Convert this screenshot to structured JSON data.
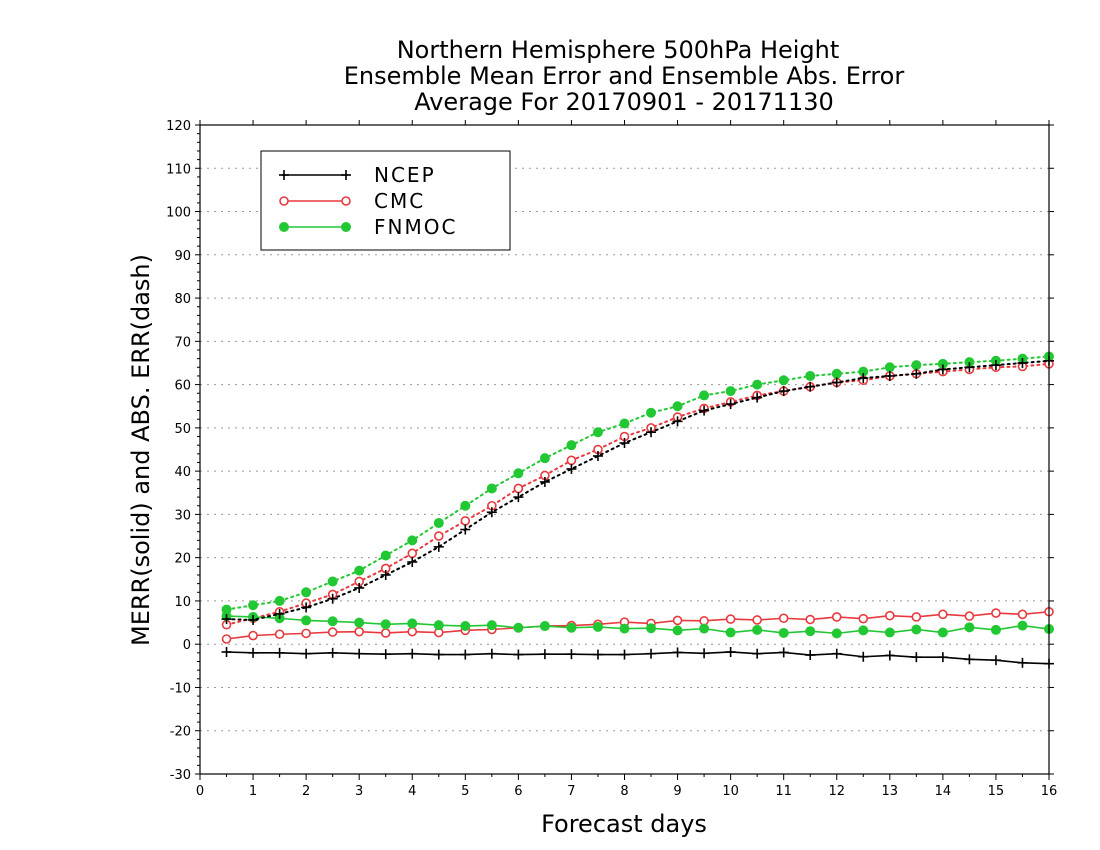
{
  "chart_data": {
    "type": "line",
    "title_lines": [
      "Northern Hemisphere 500hPa Height",
      "Ensemble Mean Error and Ensemble Abs. Error",
      "Average For 20170901 - 20171130"
    ],
    "xlabel": "Forecast days",
    "ylabel": "MERR(solid) and ABS. ERR(dash)",
    "xlim": [
      0,
      16
    ],
    "ylim": [
      -30,
      120
    ],
    "x_ticks": [
      "0",
      "1",
      "2",
      "3",
      "4",
      "5",
      "6",
      "7",
      "8",
      "9",
      "10",
      "11",
      "12",
      "13",
      "14",
      "15",
      "16"
    ],
    "y_ticks": [
      "-30",
      "-20",
      "-10",
      "0",
      "10",
      "20",
      "30",
      "40",
      "50",
      "60",
      "70",
      "80",
      "90",
      "100",
      "110",
      "120"
    ],
    "grid": true,
    "legend_position": "top-left",
    "x": [
      0.5,
      1,
      1.5,
      2,
      2.5,
      3,
      3.5,
      4,
      4.5,
      5,
      5.5,
      6,
      6.5,
      7,
      7.5,
      8,
      8.5,
      9,
      9.5,
      10,
      10.5,
      11,
      11.5,
      12,
      12.5,
      13,
      13.5,
      14,
      14.5,
      15,
      15.5,
      16
    ],
    "series": [
      {
        "name": "NCEP",
        "color": "#000000",
        "marker": "plus",
        "merr": [
          -1.8,
          -2,
          -2,
          -2.2,
          -2,
          -2.2,
          -2.3,
          -2.2,
          -2.4,
          -2.4,
          -2.2,
          -2.4,
          -2.3,
          -2.3,
          -2.4,
          -2.4,
          -2.2,
          -1.9,
          -2.1,
          -1.8,
          -2.2,
          -1.9,
          -2.5,
          -2.2,
          -2.9,
          -2.6,
          -3,
          -3,
          -3.5,
          -3.7,
          -4.3,
          -4.5
        ],
        "abs_err": [
          5.8,
          5.6,
          7,
          8.5,
          10.5,
          13,
          16,
          19,
          22.5,
          26.5,
          30.5,
          34,
          37.5,
          40.5,
          43.5,
          46.5,
          49,
          51.5,
          54,
          55.5,
          57,
          58.5,
          59.5,
          60.5,
          61.5,
          62,
          62.5,
          63.5,
          64,
          64.5,
          65,
          65.5
        ]
      },
      {
        "name": "CMC",
        "color": "#e8393f",
        "marker": "open-circle",
        "merr": [
          1.2,
          2,
          2.3,
          2.5,
          2.8,
          2.9,
          2.6,
          2.9,
          2.7,
          3.2,
          3.4,
          3.8,
          4.2,
          4.3,
          4.6,
          5.1,
          4.8,
          5.5,
          5.4,
          5.8,
          5.6,
          6,
          5.7,
          6.3,
          5.9,
          6.6,
          6.3,
          6.9,
          6.5,
          7.2,
          6.9,
          7.5
        ],
        "abs_err": [
          4.5,
          6,
          7.5,
          9.5,
          11.5,
          14.5,
          17.5,
          21,
          25,
          28.5,
          32,
          36,
          39,
          42.5,
          45,
          48,
          50,
          52.5,
          54.5,
          56,
          57.5,
          58.5,
          59.5,
          60.5,
          61,
          62,
          62.5,
          63,
          63.5,
          64,
          64.2,
          64.8
        ]
      },
      {
        "name": "FNMOC",
        "color": "#22c833",
        "marker": "filled-circle",
        "merr": [
          6.5,
          6.3,
          6,
          5.5,
          5.3,
          5,
          4.6,
          4.8,
          4.4,
          4.2,
          4.4,
          3.8,
          4.2,
          3.8,
          4,
          3.6,
          3.7,
          3.2,
          3.6,
          2.7,
          3.3,
          2.6,
          3,
          2.5,
          3.2,
          2.7,
          3.4,
          2.7,
          3.9,
          3.3,
          4.3,
          3.5
        ],
        "abs_err": [
          8,
          9,
          10,
          12,
          14.5,
          17,
          20.5,
          24,
          28,
          32,
          36,
          39.5,
          43,
          46,
          49,
          51,
          53.5,
          55,
          57.5,
          58.5,
          60,
          61,
          62,
          62.5,
          63,
          64,
          64.5,
          64.8,
          65.2,
          65.5,
          66,
          66.5
        ]
      }
    ]
  }
}
